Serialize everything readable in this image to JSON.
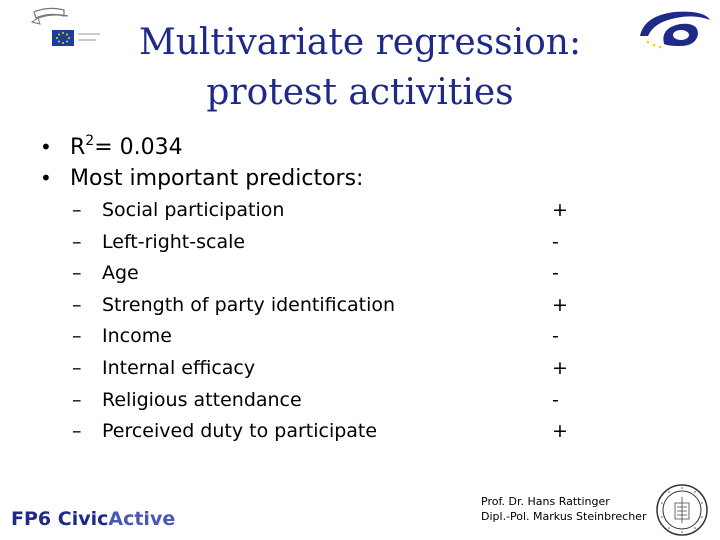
{
  "slide": {
    "title_line1": "Multivariate regression:",
    "title_line2": "protest activities",
    "r2_label": "R",
    "r2_sup": "2",
    "r2_value": "= 0.034",
    "predictors_heading": "Most important predictors:",
    "predictors": [
      {
        "label": "Social participation",
        "sign": "+"
      },
      {
        "label": "Left-right-scale",
        "sign": "-"
      },
      {
        "label": "Age",
        "sign": "-"
      },
      {
        "label": "Strength of party identification",
        "sign": "+"
      },
      {
        "label": "Income",
        "sign": "-"
      },
      {
        "label": "Internal efficacy",
        "sign": "+"
      },
      {
        "label": "Religious attendance",
        "sign": "-"
      },
      {
        "label": "Perceived duty to participate",
        "sign": "+"
      }
    ]
  },
  "footer": {
    "left_fp6": "FP6",
    "left_civic": "Civic",
    "left_active": "Active",
    "author1": "Prof. Dr. Hans Rattinger",
    "author2": "Dipl.-Pol. Markus Steinbrecher"
  },
  "colors": {
    "title": "#1f2a88",
    "eu_blue": "#1b3e9b",
    "eu_star": "#f5d400"
  },
  "icons": [
    "european-parliament-logo-icon",
    "fp6-logo-icon",
    "university-seal-icon"
  ]
}
